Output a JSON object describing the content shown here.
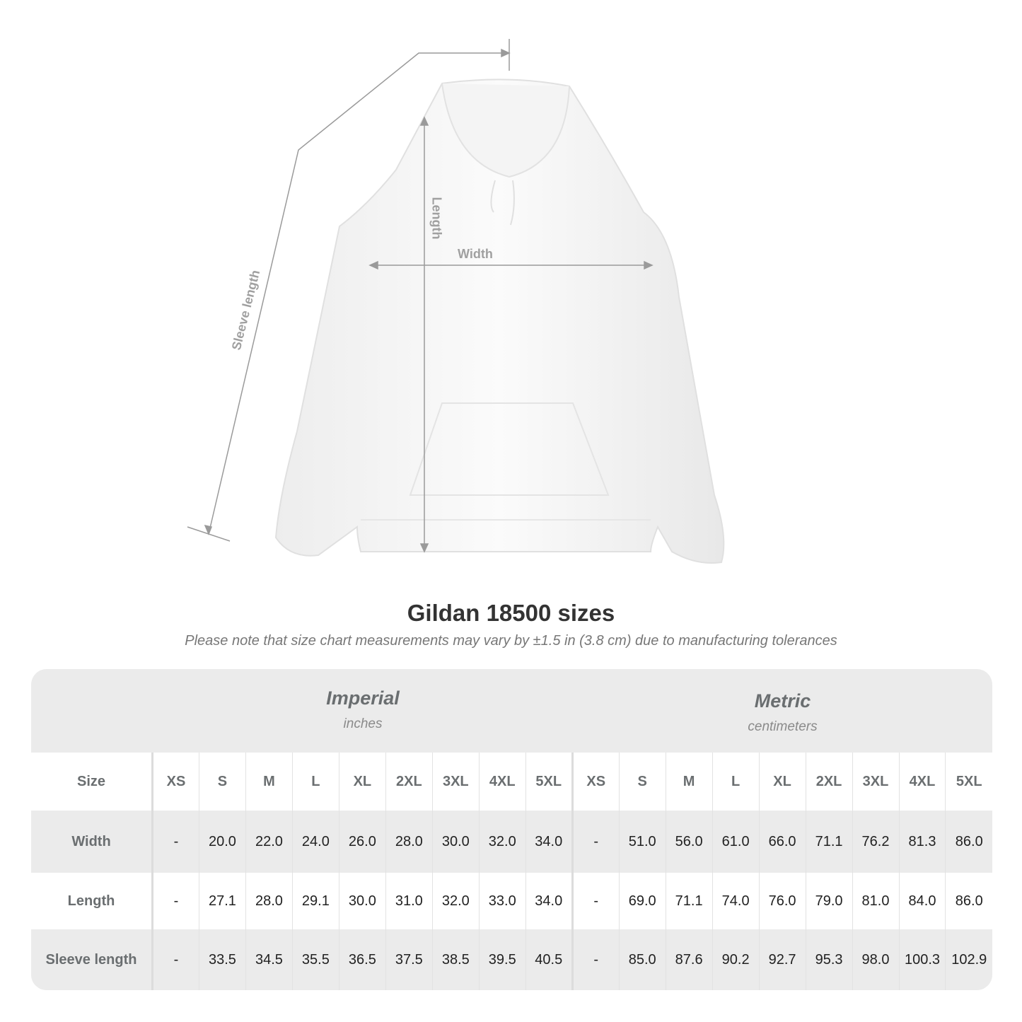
{
  "diagram": {
    "labels": {
      "sleeve": "Sleeve length",
      "length": "Length",
      "width": "Width"
    },
    "line_color": "#9a9a9a"
  },
  "title": "Gildan 18500 sizes",
  "note": "Please note that size chart measurements may vary by ±1.5 in (3.8 cm) due to manufacturing tolerances",
  "table": {
    "imperial": {
      "name": "Imperial",
      "unit": "inches"
    },
    "metric": {
      "name": "Metric",
      "unit": "centimeters"
    },
    "size_label": "Size",
    "sizes": [
      "XS",
      "S",
      "M",
      "L",
      "XL",
      "2XL",
      "3XL",
      "4XL",
      "5XL"
    ],
    "rows": [
      {
        "label": "Width",
        "imperial": [
          "-",
          "20.0",
          "22.0",
          "24.0",
          "26.0",
          "28.0",
          "30.0",
          "32.0",
          "34.0"
        ],
        "metric": [
          "-",
          "51.0",
          "56.0",
          "61.0",
          "66.0",
          "71.1",
          "76.2",
          "81.3",
          "86.0"
        ]
      },
      {
        "label": "Length",
        "imperial": [
          "-",
          "27.1",
          "28.0",
          "29.1",
          "30.0",
          "31.0",
          "32.0",
          "33.0",
          "34.0"
        ],
        "metric": [
          "-",
          "69.0",
          "71.1",
          "74.0",
          "76.0",
          "79.0",
          "81.0",
          "84.0",
          "86.0"
        ]
      },
      {
        "label": "Sleeve length",
        "imperial": [
          "-",
          "33.5",
          "34.5",
          "35.5",
          "36.5",
          "37.5",
          "38.5",
          "39.5",
          "40.5"
        ],
        "metric": [
          "-",
          "85.0",
          "87.6",
          "90.2",
          "92.7",
          "95.3",
          "98.0",
          "100.3",
          "102.9"
        ]
      }
    ]
  }
}
